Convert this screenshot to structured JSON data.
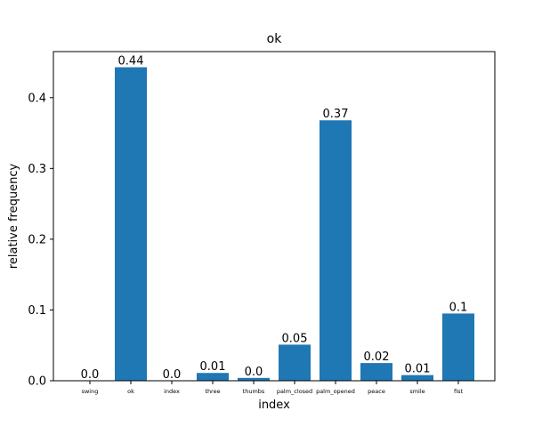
{
  "chart_data": {
    "type": "bar",
    "title": "ok",
    "xlabel": "index",
    "ylabel": "relative frequency",
    "categories": [
      "swing",
      "ok",
      "index",
      "three",
      "thumbs",
      "palm_closed",
      "palm_opened",
      "peace",
      "smile",
      "fist"
    ],
    "values": [
      0.0,
      0.443,
      0.0,
      0.011,
      0.004,
      0.051,
      0.368,
      0.025,
      0.008,
      0.095
    ],
    "data_labels": [
      "0.0",
      "0.44",
      "0.0",
      "0.01",
      "0.0",
      "0.05",
      "0.37",
      "0.02",
      "0.01",
      "0.1"
    ],
    "yticks": [
      0.0,
      0.1,
      0.2,
      0.3,
      0.4
    ],
    "ytick_labels": [
      "0.0",
      "0.1",
      "0.2",
      "0.3",
      "0.4"
    ],
    "ylim": [
      0,
      0.4651
    ],
    "grid": false,
    "bar_color": "#1f77b4"
  }
}
